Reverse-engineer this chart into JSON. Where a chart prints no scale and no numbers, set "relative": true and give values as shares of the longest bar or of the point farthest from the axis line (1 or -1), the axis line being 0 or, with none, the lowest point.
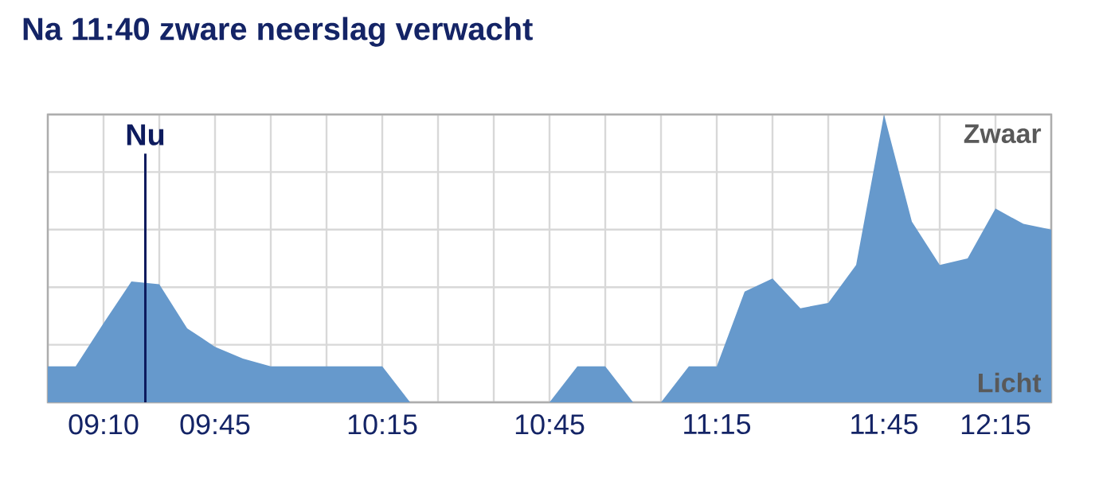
{
  "chart_data": {
    "type": "area",
    "title": "Na 11:40 zware neerslag verwacht",
    "relative": true,
    "categories": [
      null,
      null,
      "09:10",
      null,
      null,
      null,
      "09:45",
      null,
      null,
      null,
      null,
      null,
      "10:15",
      null,
      null,
      null,
      null,
      null,
      "10:45",
      null,
      null,
      null,
      null,
      null,
      "11:15",
      null,
      null,
      null,
      null,
      null,
      "11:45",
      null,
      null,
      null,
      "12:15",
      null,
      null
    ],
    "values": [
      0.125,
      0.125,
      0.275,
      0.42,
      0.41,
      0.257,
      0.193,
      0.152,
      0.125,
      0.125,
      0.125,
      0.125,
      0.125,
      0,
      0,
      0,
      0,
      0,
      0,
      0.125,
      0.125,
      0,
      0,
      0.125,
      0.125,
      0.385,
      0.43,
      0.327,
      0.345,
      0.477,
      1,
      0.628,
      0.477,
      0.5,
      0.673,
      0.62,
      0.6
    ],
    "color": "#6699cc",
    "grid": true,
    "annotations": [
      "Licht",
      "Zwaar",
      "Nu"
    ]
  }
}
